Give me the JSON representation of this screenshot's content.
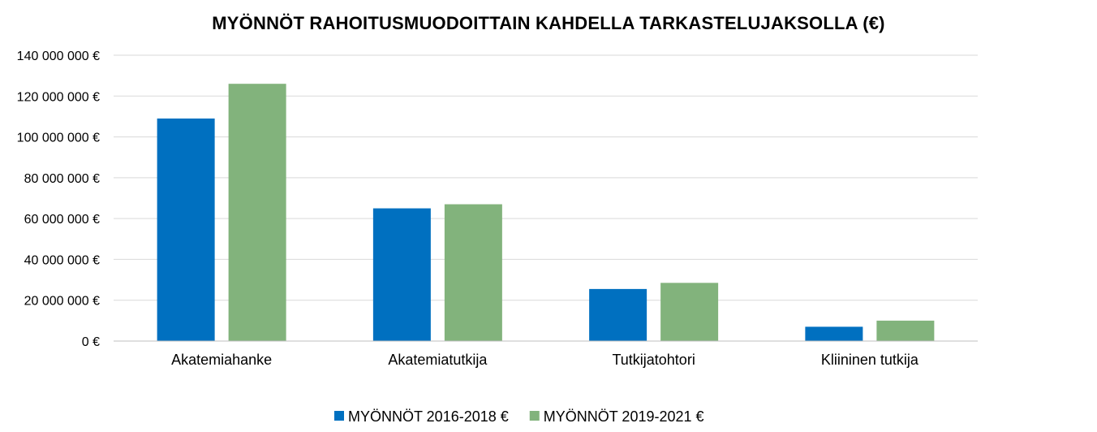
{
  "chart_data": {
    "type": "bar",
    "title": "MYÖNNÖT RAHOITUSMUODOITTAIN KAHDELLA TARKASTELUJAKSOLLA (€)",
    "xlabel": "",
    "ylabel": "",
    "categories": [
      "Akatemiahanke",
      "Akatemiatutkija",
      "Tutkijatohtori",
      "Kliininen tutkija"
    ],
    "series": [
      {
        "name": "MYÖNNÖT 2016-2018 €",
        "color": "#0070C0",
        "values": [
          109000000,
          65000000,
          25500000,
          7000000
        ]
      },
      {
        "name": "MYÖNNÖT 2019-2021 €",
        "color": "#82B37C",
        "values": [
          126000000,
          67000000,
          28500000,
          10000000
        ]
      }
    ],
    "ylim": [
      0,
      140000000
    ],
    "yticks": [
      0,
      20000000,
      40000000,
      60000000,
      80000000,
      100000000,
      120000000,
      140000000
    ],
    "ytick_labels": [
      "0 €",
      "20 000 000 €",
      "40 000 000 €",
      "60 000 000 €",
      "80 000 000 €",
      "100 000 000 €",
      "120 000 000 €",
      "140 000 000 €"
    ],
    "grid": true,
    "gridline_color": "#D9D9D9",
    "legend_position": "bottom"
  }
}
